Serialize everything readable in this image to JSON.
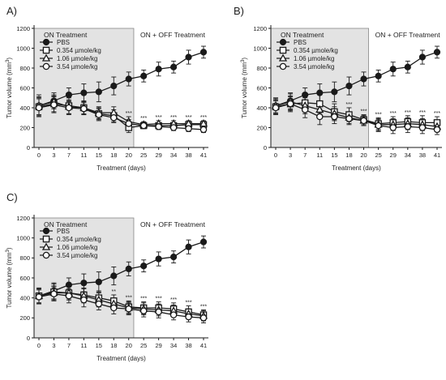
{
  "colors": {
    "shade": "#e3e3e3",
    "shade_border": "#888888",
    "ink": "#1a1a1a"
  },
  "chart_data": [
    {
      "type": "line",
      "panel_label": "A)",
      "on_label": "ON Treatment",
      "off_label": "ON + OFF Treatment",
      "xlabel": "Treatment (days)",
      "ylabel_main": "Tumor volume (mm",
      "ylabel_sup": "3",
      "ylabel_end": ")",
      "ylim": [
        0,
        1200
      ],
      "yticks": [
        "0",
        "200",
        "400",
        "600",
        "800",
        "1000",
        "1200"
      ],
      "categories": [
        "0",
        "3",
        "7",
        "11",
        "15",
        "18",
        "20",
        "25",
        "29",
        "34",
        "38",
        "41"
      ],
      "shaded_through": "20",
      "series": [
        {
          "name": "PBS",
          "marker": "filled-circle",
          "values": [
            420,
            470,
            530,
            550,
            560,
            620,
            690,
            720,
            790,
            810,
            910,
            960
          ],
          "err": [
            110,
            80,
            70,
            90,
            100,
            90,
            70,
            60,
            70,
            60,
            70,
            60
          ]
        },
        {
          "name": "0.354 µmole/kg",
          "marker": "open-square",
          "values": [
            410,
            440,
            420,
            400,
            340,
            320,
            200,
            220,
            220,
            220,
            230,
            230
          ],
          "err": [
            90,
            80,
            80,
            70,
            60,
            60,
            50,
            30,
            30,
            30,
            30,
            30
          ]
        },
        {
          "name": "1.06 µmole/kg",
          "marker": "open-triangle",
          "values": [
            420,
            460,
            410,
            400,
            350,
            350,
            260,
            230,
            240,
            240,
            240,
            240
          ],
          "err": [
            90,
            70,
            70,
            60,
            60,
            60,
            50,
            30,
            30,
            30,
            30,
            30
          ]
        },
        {
          "name": "3.54 µmole/kg",
          "marker": "open-circle",
          "values": [
            400,
            430,
            400,
            390,
            330,
            300,
            240,
            220,
            210,
            200,
            190,
            180
          ],
          "err": [
            90,
            80,
            70,
            60,
            60,
            50,
            40,
            30,
            30,
            30,
            30,
            30
          ]
        }
      ],
      "annotations": [
        "",
        "",
        "",
        "",
        "",
        "",
        "***",
        "***",
        "***",
        "***",
        "***",
        "***"
      ]
    },
    {
      "type": "line",
      "panel_label": "B)",
      "on_label": "ON Treatment",
      "off_label": "ON + OFF Treatment",
      "xlabel": "Treatment (days)",
      "ylabel_main": "Tumor volume (mm",
      "ylabel_sup": "3",
      "ylabel_end": ")",
      "ylim": [
        0,
        1200
      ],
      "yticks": [
        "0",
        "200",
        "400",
        "600",
        "800",
        "1000",
        "1200"
      ],
      "categories": [
        "0",
        "3",
        "7",
        "11",
        "15",
        "18",
        "20",
        "25",
        "29",
        "34",
        "38",
        "41"
      ],
      "shaded_through": "20",
      "series": [
        {
          "name": "PBS",
          "marker": "filled-circle",
          "values": [
            420,
            470,
            530,
            550,
            560,
            620,
            690,
            720,
            790,
            810,
            910,
            960
          ],
          "err": [
            80,
            80,
            70,
            90,
            100,
            90,
            70,
            60,
            70,
            60,
            70,
            60
          ]
        },
        {
          "name": "0.354 µmole/kg",
          "marker": "open-square",
          "values": [
            410,
            440,
            450,
            440,
            360,
            330,
            280,
            240,
            250,
            260,
            250,
            250
          ],
          "err": [
            70,
            80,
            90,
            90,
            80,
            70,
            50,
            60,
            60,
            60,
            70,
            60
          ]
        },
        {
          "name": "1.06 µmole/kg",
          "marker": "open-triangle",
          "values": [
            420,
            460,
            420,
            380,
            340,
            300,
            270,
            230,
            230,
            240,
            230,
            210
          ],
          "err": [
            70,
            80,
            80,
            80,
            70,
            60,
            50,
            60,
            60,
            60,
            60,
            50
          ]
        },
        {
          "name": "3.54 µmole/kg",
          "marker": "open-circle",
          "values": [
            400,
            440,
            380,
            310,
            310,
            290,
            270,
            220,
            200,
            210,
            200,
            180
          ],
          "err": [
            70,
            70,
            80,
            80,
            70,
            60,
            50,
            60,
            60,
            60,
            60,
            50
          ]
        }
      ],
      "annotations": [
        "",
        "",
        "",
        "",
        "",
        "***",
        "***",
        "***",
        "***",
        "***",
        "***",
        "***"
      ]
    },
    {
      "type": "line",
      "panel_label": "C)",
      "on_label": "ON Treatment",
      "off_label": "ON + OFF Treatment",
      "xlabel": "Treatment (days)",
      "ylabel_main": "Tumor volume (mm",
      "ylabel_sup": "3",
      "ylabel_end": ")",
      "ylim": [
        0,
        1200
      ],
      "yticks": [
        "0",
        "200",
        "400",
        "600",
        "800",
        "1000",
        "1200"
      ],
      "categories": [
        "0",
        "3",
        "7",
        "11",
        "15",
        "18",
        "20",
        "25",
        "29",
        "34",
        "38",
        "41"
      ],
      "shaded_through": "20",
      "series": [
        {
          "name": "PBS",
          "marker": "filled-circle",
          "values": [
            420,
            470,
            530,
            550,
            560,
            620,
            690,
            720,
            790,
            810,
            910,
            960
          ],
          "err": [
            80,
            80,
            70,
            90,
            100,
            90,
            70,
            60,
            70,
            60,
            70,
            60
          ]
        },
        {
          "name": "0.354 µmole/kg",
          "marker": "open-square",
          "values": [
            420,
            460,
            450,
            430,
            400,
            370,
            310,
            300,
            300,
            290,
            260,
            230
          ],
          "err": [
            70,
            80,
            70,
            70,
            70,
            60,
            60,
            60,
            60,
            60,
            60,
            50
          ]
        },
        {
          "name": "1.06 µmole/kg",
          "marker": "open-triangle",
          "values": [
            420,
            450,
            450,
            420,
            380,
            340,
            300,
            290,
            280,
            270,
            240,
            220
          ],
          "err": [
            70,
            70,
            70,
            70,
            70,
            60,
            60,
            60,
            60,
            60,
            50,
            50
          ]
        },
        {
          "name": "3.54 µmole/kg",
          "marker": "open-circle",
          "values": [
            410,
            440,
            420,
            380,
            340,
            300,
            290,
            270,
            260,
            230,
            210,
            200
          ],
          "err": [
            70,
            70,
            70,
            70,
            60,
            60,
            60,
            60,
            60,
            50,
            50,
            50
          ]
        }
      ],
      "annotations": [
        "",
        "",
        "",
        "",
        "",
        "**",
        "***",
        "***",
        "***",
        "***",
        "***",
        "***"
      ]
    }
  ]
}
